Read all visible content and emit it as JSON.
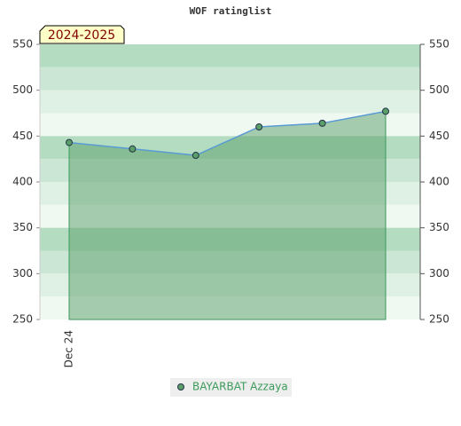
{
  "chart_data": {
    "type": "line",
    "title": "WOF ratinglist",
    "annotation": "2024-2025",
    "categories": [
      "Dec 24",
      null,
      null,
      null,
      null,
      null
    ],
    "series": [
      {
        "name": "BAYARBAT Azzaya",
        "color": "#5a9e6a",
        "line_color": "#5b9bd5",
        "values": [
          443,
          436,
          429,
          460,
          464,
          477
        ]
      }
    ],
    "ylim": [
      250,
      550
    ],
    "yticks": [
      250,
      300,
      350,
      400,
      450,
      500,
      550
    ],
    "right_axis": true,
    "area": true
  }
}
